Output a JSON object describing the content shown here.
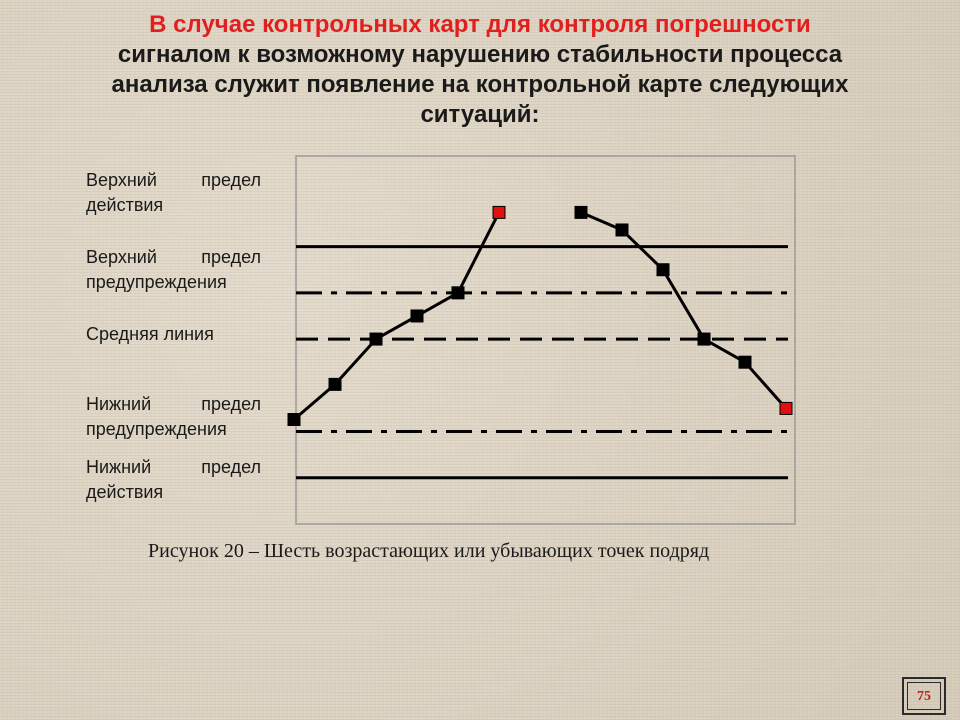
{
  "slide": {
    "title_highlight": "В случае контрольных карт для контроля погрешности",
    "title_lines": [
      "сигналом к возможному нарушению стабильности процесса",
      "анализа служит появление на контрольной карте следующих",
      "ситуаций:"
    ],
    "caption": "Рисунок 20 – Шесть возрастающих или убывающих точек подряд",
    "page_number": "75"
  },
  "chart_data": {
    "type": "line",
    "levels": [
      {
        "label_1": "Верхний предел",
        "label_2": "действия",
        "value": 1.0,
        "style": "solid"
      },
      {
        "label_1": "Верхний предел",
        "label_2": "предупреждения",
        "value": 0.5,
        "style": "dash-dot"
      },
      {
        "label_1": "Средняя линия",
        "label_2": "",
        "value": 0.0,
        "style": "dashed"
      },
      {
        "label_1": "Нижний предел",
        "label_2": "предупреждения",
        "value": -1.0,
        "style": "dash-dot"
      },
      {
        "label_1": "Нижний предел",
        "label_2": "действия",
        "value": -1.5,
        "style": "solid"
      }
    ],
    "ylim": [
      -2.0,
      1.98
    ],
    "segments": [
      {
        "points": [
          {
            "x": 0,
            "y": -0.87,
            "highlight": false
          },
          {
            "x": 1,
            "y": -0.49,
            "highlight": false
          },
          {
            "x": 2,
            "y": 0.0,
            "highlight": false
          },
          {
            "x": 3,
            "y": 0.25,
            "highlight": false
          },
          {
            "x": 4,
            "y": 0.5,
            "highlight": false
          },
          {
            "x": 5,
            "y": 1.37,
            "highlight": true
          }
        ]
      },
      {
        "points": [
          {
            "x": 7,
            "y": 1.37,
            "highlight": false
          },
          {
            "x": 8,
            "y": 1.18,
            "highlight": false
          },
          {
            "x": 9,
            "y": 0.75,
            "highlight": false
          },
          {
            "x": 10,
            "y": 0.0,
            "highlight": false
          },
          {
            "x": 11,
            "y": -0.25,
            "highlight": false
          },
          {
            "x": 12,
            "y": -0.75,
            "highlight": true
          }
        ]
      }
    ],
    "xlim": [
      0,
      12
    ],
    "colors": {
      "line": "#000000",
      "marker": "#000000",
      "highlight": "#e01010",
      "frame": "#9a9a9a"
    }
  }
}
